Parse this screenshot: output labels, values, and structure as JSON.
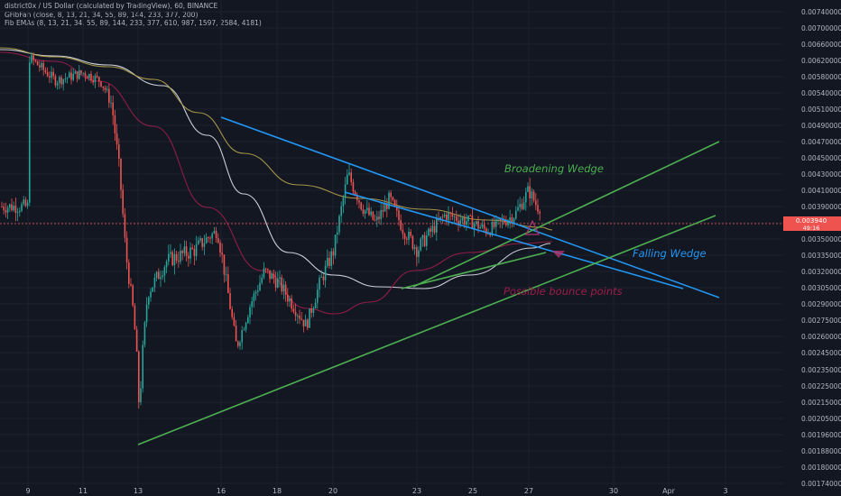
{
  "legend": {
    "line1": "district0x / US Dollar (calculated by TradingView), 60, BINANCE",
    "line2": "GFibFan (close, 8, 13, 21, 34, 55, 89, 144, 233, 377, 200)",
    "line3": "Fib EMAs (8, 13, 21, 34, 55, 89, 144, 233, 377, 610, 987, 1597, 2584, 4181)"
  },
  "price_badge": {
    "value": "0.003940",
    "time": "49:16"
  },
  "colors": {
    "background": "#131722",
    "up_candle": "#26a69a",
    "down_candle": "#ef5350",
    "wedge_blue": "#2196f3",
    "wedge_green": "#4caf50",
    "ema_white": "#e0e3eb",
    "ema_olive": "#b5a24c",
    "ema_crimson": "#9c1d4a",
    "bounce": "#b0336e",
    "price_line": "#ef5350"
  },
  "chart_data": {
    "type": "candlestick",
    "title": "district0x / US Dollar (calculated by TradingView), 60, BINANCE",
    "x_ticks": [
      "9",
      "11",
      "13",
      "16",
      "18",
      "20",
      "23",
      "25",
      "27",
      "30",
      "Apr",
      "3"
    ],
    "y_ticks": [
      "0.00174000",
      "0.00180000",
      "0.00188000",
      "0.00196000",
      "0.00205000",
      "0.00215000",
      "0.00225000",
      "0.00235000",
      "0.00245000",
      "0.00260000",
      "0.00275000",
      "0.00290000",
      "0.00305000",
      "0.00320000",
      "0.00335000",
      "0.00350000",
      "0.00370000",
      "0.00390000",
      "0.00410000",
      "0.00430000",
      "0.00450000",
      "0.00470000",
      "0.00490000",
      "0.00510000",
      "0.00540000",
      "0.00580000",
      "0.00620000",
      "0.00660000",
      "0.00700000",
      "0.00740000",
      "0.00780000"
    ],
    "price_anchors": [
      [
        "9",
        0.0063
      ],
      [
        "10",
        0.0057
      ],
      [
        "11",
        0.0059
      ],
      [
        "11.6",
        0.0057
      ],
      [
        "12",
        0.0052
      ],
      [
        "12.3",
        0.0043
      ],
      [
        "12.5",
        0.0034
      ],
      [
        "12.8",
        0.0028
      ],
      [
        "13",
        0.0021
      ],
      [
        "13.3",
        0.003
      ],
      [
        "14",
        0.0033
      ],
      [
        "15",
        0.0034
      ],
      [
        "15.8",
        0.0036
      ],
      [
        "16",
        0.0033
      ],
      [
        "16.5",
        0.0025
      ],
      [
        "17",
        0.0029
      ],
      [
        "17.5",
        0.0032
      ],
      [
        "18",
        0.0031
      ],
      [
        "19",
        0.0027
      ],
      [
        "19.5",
        0.0031
      ],
      [
        "20",
        0.0034
      ],
      [
        "20.5",
        0.0043
      ],
      [
        "21",
        0.0039
      ],
      [
        "21.5",
        0.0037
      ],
      [
        "22",
        0.004
      ],
      [
        "22.5",
        0.0036
      ],
      [
        "23",
        0.0034
      ],
      [
        "23.5",
        0.0036
      ],
      [
        "24",
        0.0038
      ],
      [
        "25",
        0.0037
      ],
      [
        "25.5",
        0.0036
      ],
      [
        "26",
        0.0037
      ],
      [
        "26.5",
        0.0038
      ],
      [
        "27",
        0.0041
      ],
      [
        "27.3",
        0.0039
      ]
    ],
    "trend_lines": [
      {
        "name": "Falling Wedge upper",
        "color": "#2196f3",
        "from": [
          "16",
          0.0054
        ],
        "to": [
          "Apr 3",
          0.0031
        ]
      },
      {
        "name": "Falling Wedge inner",
        "color": "#2196f3",
        "from": [
          "20",
          0.0043
        ],
        "to": [
          "Apr 3",
          0.0032
        ]
      },
      {
        "name": "Broadening Wedge upper",
        "color": "#4caf50",
        "from": [
          "23",
          0.0033
        ],
        "to": [
          "Apr 3",
          0.0051
        ]
      },
      {
        "name": "Broadening Wedge lower",
        "color": "#4caf50",
        "from": [
          "13",
          0.002
        ],
        "to": [
          "Apr 3",
          0.004
        ]
      }
    ],
    "annotations": [
      {
        "text": "Broadening Wedge",
        "color": "#4caf50"
      },
      {
        "text": "Falling Wedge",
        "color": "#2196f3"
      },
      {
        "text": "Possible bounce points",
        "color": "#9c1d4a"
      }
    ],
    "ema_lines": [
      "Fib EMA (white)",
      "Fib EMA (olive)",
      "Fib EMA (crimson)"
    ],
    "grid": true
  }
}
